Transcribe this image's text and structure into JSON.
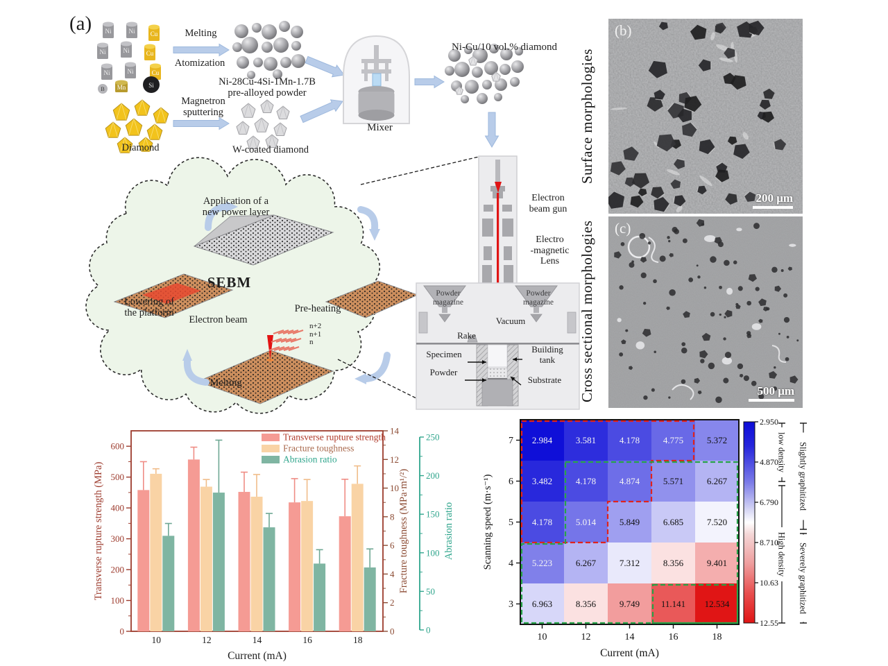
{
  "panel_a": {
    "tag": "(a)",
    "melting": "Melting",
    "atomization": "Atomization",
    "prealloyed_powder": "Ni-28Cu-4Si-1Mn-1.7B\npre-alloyed powder",
    "diamond": "Diamond",
    "magnetron": "Magnetron\nsputtering",
    "w_coated": "W-coated diamond",
    "mixer": "Mixer",
    "mixed_powder": "Ni-Cu/10 vol.% diamond",
    "elements": {
      "ni": "Ni",
      "cu": "Cu",
      "b": "B",
      "mn": "Mn",
      "si": "Si"
    },
    "cloud": {
      "application": "Application of a\nnew power layer",
      "sebm": "SEBM",
      "preheating": "Pre-heating",
      "electron_beam": "Electron beam",
      "layers": "n+2\nn+1\nn",
      "melting": "Melting",
      "lowering": "Lowering of\nthe platform"
    },
    "machine": {
      "gun": "Electron\nbeam gun",
      "lens": "Electro\n-magnetic\nLens",
      "magazine_left": "Powder\nmagazine",
      "magazine_right": "Powder\nmagazine",
      "vacuum": "Vacuum",
      "rake": "Rake",
      "specimen": "Specimen",
      "building_tank": "Building\ntank",
      "powder": "Powder",
      "substrate": "Substrate"
    }
  },
  "panel_b": {
    "tag": "(b)",
    "side_label": "Surface morphologies",
    "scale_bar": "200 μm"
  },
  "panel_c": {
    "tag": "(c)",
    "side_label": "Cross sectional morphologies",
    "scale_bar": "500 μm"
  },
  "chart_data": [
    {
      "type": "bar",
      "categories": [
        "10",
        "12",
        "14",
        "16",
        "18"
      ],
      "xlabel": "Current (mA)",
      "axes": {
        "left": {
          "label": "Transverse rupture strength (MPa)",
          "range": [
            0,
            650
          ],
          "ticks": [
            0,
            100,
            200,
            300,
            400,
            500,
            600
          ],
          "color": "#9c3a2c"
        },
        "right1": {
          "label": "Fracture toughness (MPa·m¹/²)",
          "range": [
            0,
            14
          ],
          "ticks": [
            0,
            2,
            4,
            6,
            8,
            10,
            12,
            14
          ],
          "color": "#8b4a32"
        },
        "right2": {
          "label": "Abrasion ratio",
          "range": [
            0,
            250
          ],
          "ticks": [
            0,
            50,
            100,
            150,
            200,
            250
          ],
          "color": "#2fa58c"
        }
      },
      "series": [
        {
          "name": "Transverse rupture strength",
          "axis": "left",
          "color": "#f59b94",
          "error_color": "#ef8d85",
          "text_color": "#b03a2a",
          "values": [
            458,
            557,
            452,
            418,
            373
          ],
          "errors": [
            92,
            40,
            64,
            77,
            120
          ]
        },
        {
          "name": "Fracture toughness",
          "axis": "right1",
          "color": "#f9d3a5",
          "error_color": "#f0bd8a",
          "text_color": "#a96a4e",
          "values": [
            11.0,
            10.1,
            9.4,
            9.1,
            10.3
          ],
          "errors": [
            0.35,
            0.5,
            1.55,
            1.5,
            1.25
          ]
        },
        {
          "name": "Abrasion ratio",
          "axis": "right2",
          "color": "#7fb5a2",
          "error_color": "#6fa894",
          "text_color": "#2fa58c",
          "values": [
            122,
            178,
            133,
            86,
            81
          ],
          "errors": [
            16,
            68,
            18,
            18,
            24
          ]
        }
      ],
      "legend_position": "top-right"
    },
    {
      "type": "heatmap",
      "xlabel": "Current (mA)",
      "ylabel": "Scanning speed (m·s⁻¹)",
      "x": [
        "10",
        "12",
        "14",
        "16",
        "18"
      ],
      "y": [
        "7",
        "6",
        "5",
        "4",
        "3"
      ],
      "values_display": [
        [
          "2.984",
          "3.581",
          "4.178",
          "4.775",
          "5.372"
        ],
        [
          "3.482",
          "4.178",
          "4.874",
          "5.571",
          "6.267"
        ],
        [
          "4.178",
          "5.014",
          "5.849",
          "6.685",
          "7.520"
        ],
        [
          "5.223",
          "6.267",
          "7.312",
          "8.356",
          "9.401"
        ],
        [
          "6.963",
          "8.356",
          "9.749",
          "11.141",
          "12.534"
        ]
      ],
      "colorbar": {
        "ticks": [
          "2.950",
          "4.870",
          "6.790",
          "8.710",
          "10.63",
          "12.55"
        ],
        "min": 2.95,
        "max": 12.55,
        "top_color": "#0d0dd8",
        "mid_color": "#ffffff",
        "bottom_color": "#e01414"
      },
      "annotations": {
        "low_density": "low density",
        "high_density": "High density",
        "slightly_graphitized": "Slightly graphitized",
        "severely_graphitized": "Severely graphitized",
        "red_region_color": "#e0231d",
        "green_region_color": "#27a348"
      }
    }
  ]
}
